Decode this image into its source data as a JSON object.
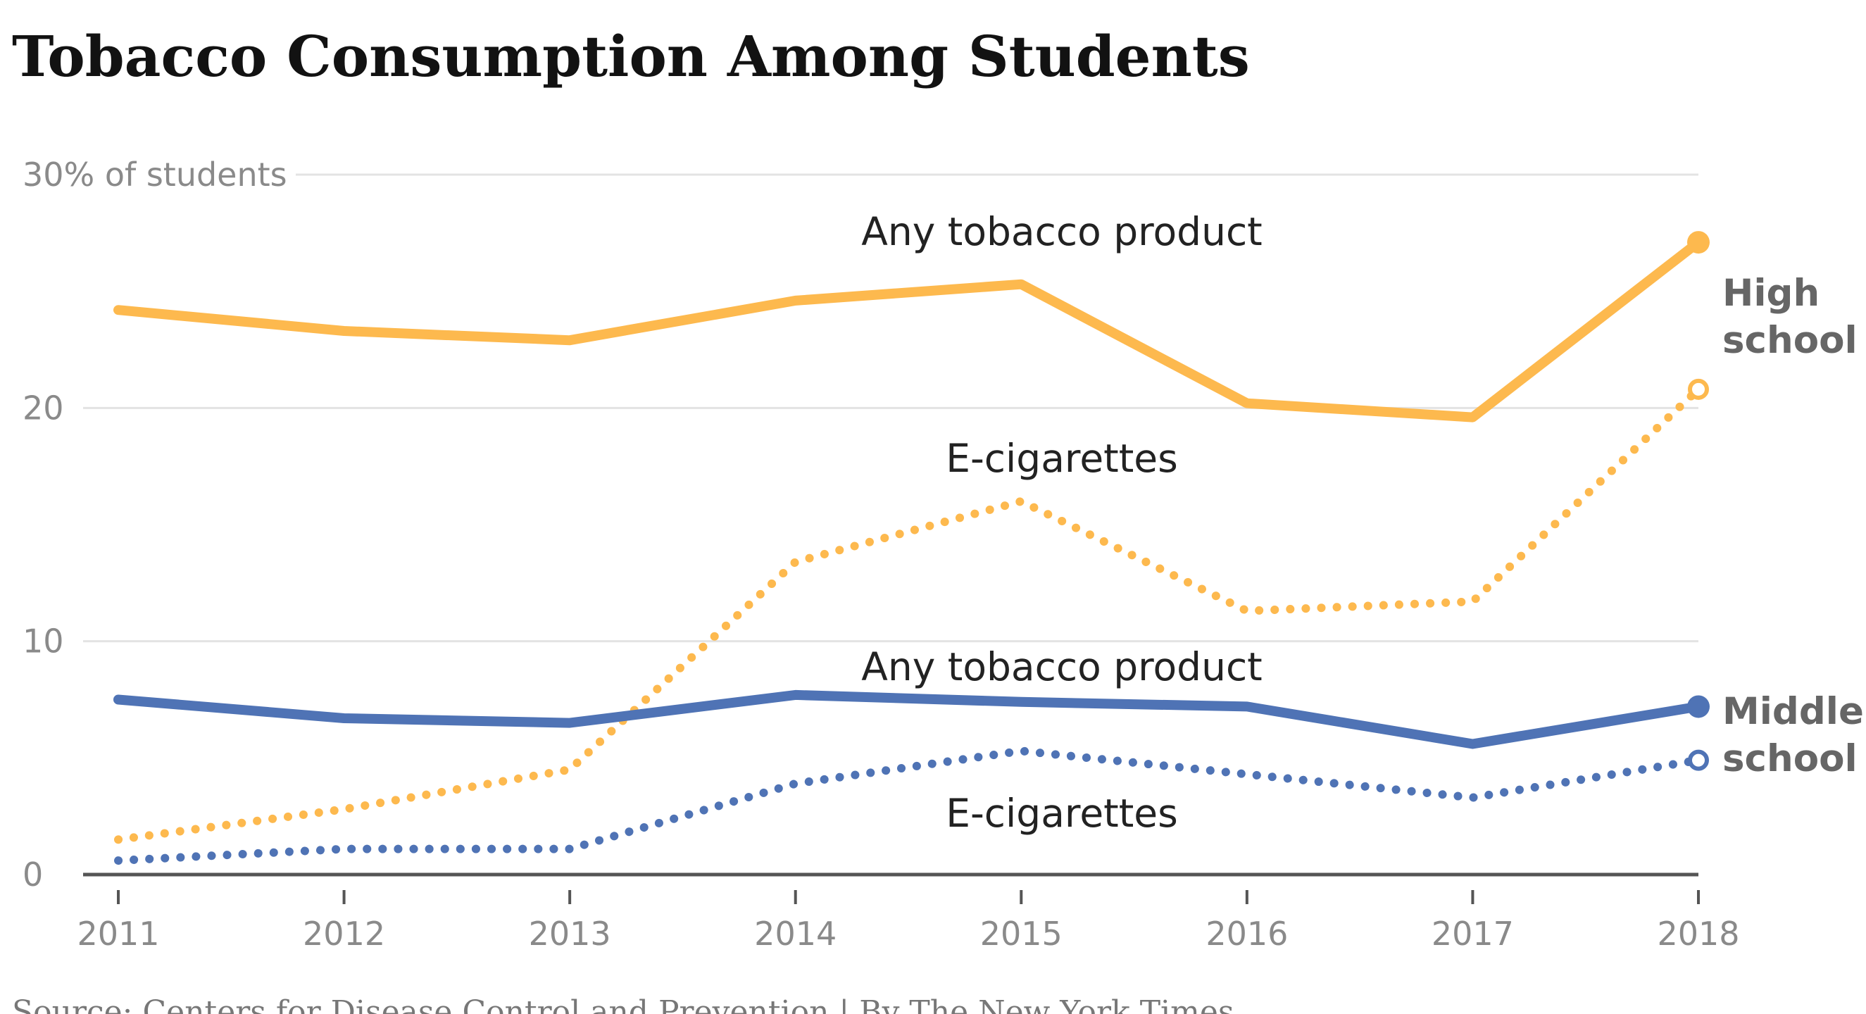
{
  "chart_data": {
    "type": "line",
    "title": "Tobacco Consumption Among Students",
    "x": [
      "2011",
      "2012",
      "2013",
      "2014",
      "2015",
      "2016",
      "2017",
      "2018"
    ],
    "ylim": [
      0,
      30
    ],
    "yticks": [
      {
        "value": 0,
        "label": "0"
      },
      {
        "value": 10,
        "label": "10"
      },
      {
        "value": 20,
        "label": "20"
      },
      {
        "value": 30,
        "label": "30% of students"
      }
    ],
    "grid": true,
    "groups": [
      {
        "id": "high",
        "label_lines": [
          "High",
          "school"
        ],
        "color": "#fdb94e"
      },
      {
        "id": "middle",
        "label_lines": [
          "Middle",
          "school"
        ],
        "color": "#4f73b5"
      }
    ],
    "series": [
      {
        "group": "high",
        "label": "Any tobacco product",
        "style": "solid",
        "values": [
          24.2,
          23.3,
          22.9,
          24.6,
          25.3,
          20.2,
          19.6,
          27.1
        ]
      },
      {
        "group": "high",
        "label": "E-cigarettes",
        "style": "dotted",
        "values": [
          1.5,
          2.8,
          4.5,
          13.4,
          16.0,
          11.3,
          11.7,
          20.8
        ]
      },
      {
        "group": "middle",
        "label": "Any tobacco product",
        "style": "solid",
        "values": [
          7.5,
          6.7,
          6.5,
          7.7,
          7.4,
          7.2,
          5.6,
          7.2
        ]
      },
      {
        "group": "middle",
        "label": "E-cigarettes",
        "style": "dotted",
        "values": [
          0.6,
          1.1,
          1.1,
          3.9,
          5.3,
          4.3,
          3.3,
          4.9
        ]
      }
    ],
    "source": "Source: Centers for Disease Control and Prevention | By The New York Times"
  }
}
